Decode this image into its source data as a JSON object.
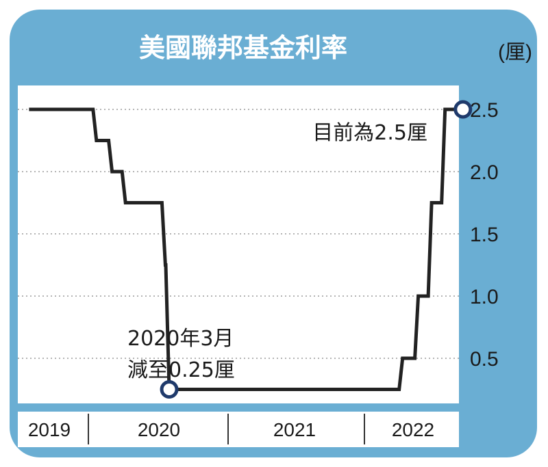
{
  "title": "美國聯邦基金利率",
  "unit": "(厘)",
  "colors": {
    "frame": "#6aaed3",
    "plot_bg": "#ffffff",
    "line": "#222222",
    "marker_stroke": "#1f3a6b",
    "grid": "#9a9a9a"
  },
  "chart_data": {
    "type": "line",
    "step": true,
    "title": "美國聯邦基金利率",
    "ylabel": "(厘)",
    "xlabel": "",
    "ylim": [
      0,
      2.6
    ],
    "y_ticks": [
      "0.5",
      "1.0",
      "1.5",
      "2.0",
      "2.5"
    ],
    "year_labels": [
      "2019",
      "2020",
      "2021",
      "2022"
    ],
    "grid": true,
    "grid_style": "dotted horizontal",
    "series": [
      {
        "x": [
          "2019-01-01",
          "2019-07-31",
          "2019-09-18",
          "2019-10-30",
          "2020-03-03",
          "2020-03-15",
          "2022-03-16",
          "2022-05-04",
          "2022-06-15",
          "2022-07-27",
          "2022-09-21"
        ],
        "values": [
          2.5,
          2.25,
          2.0,
          1.75,
          1.25,
          0.25,
          0.5,
          1.0,
          1.75,
          2.5,
          2.5
        ]
      }
    ],
    "annotations": [
      {
        "x": "2020-03-15",
        "y": 0.25,
        "text_line1": "2020年3月",
        "text_line2": "減至0.25厘"
      },
      {
        "x": "2022-09-21",
        "y": 2.5,
        "text_line1": "目前為2.5厘"
      }
    ]
  }
}
